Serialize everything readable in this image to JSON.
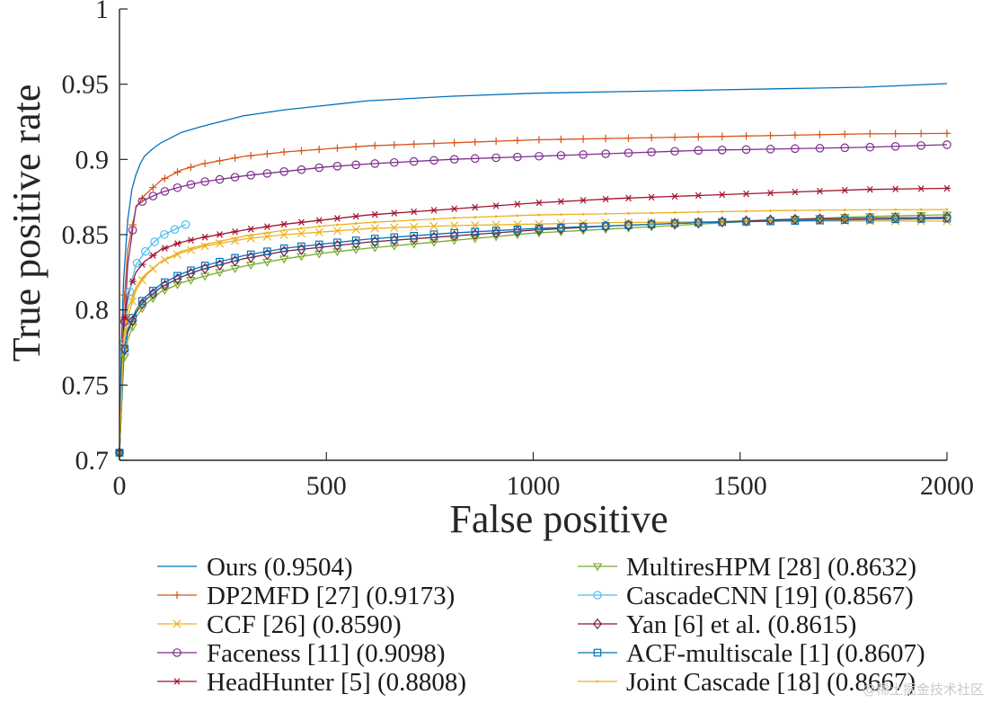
{
  "chart_data": {
    "type": "line",
    "title": "",
    "xlabel": "False positive",
    "ylabel": "True positive rate",
    "xlim": [
      0,
      2000
    ],
    "ylim": [
      0.7,
      1
    ],
    "xticks": [
      0,
      500,
      1000,
      1500,
      2000
    ],
    "xtick_labels": [
      "0",
      "500",
      "1000",
      "1500",
      "2000"
    ],
    "yticks": [
      0.7,
      0.75,
      0.8,
      0.85,
      0.9,
      0.95,
      1
    ],
    "ytick_labels": [
      "0.7",
      "0.75",
      "0.8",
      "0.85",
      "0.9",
      "0.95",
      "1"
    ],
    "grid": false,
    "legend_position": "bottom, two columns",
    "series": [
      {
        "name": "Ours (0.9504)",
        "color": "#0072BD",
        "marker": "none",
        "x": [
          0,
          5,
          10,
          20,
          30,
          40,
          50,
          60,
          80,
          100,
          150,
          200,
          300,
          400,
          500,
          600,
          800,
          1000,
          1200,
          1400,
          1600,
          1800,
          2000
        ],
        "y": [
          0.705,
          0.78,
          0.82,
          0.86,
          0.88,
          0.89,
          0.897,
          0.902,
          0.907,
          0.911,
          0.918,
          0.922,
          0.929,
          0.933,
          0.936,
          0.939,
          0.942,
          0.944,
          0.945,
          0.946,
          0.947,
          0.948,
          0.9504
        ]
      },
      {
        "name": "DP2MFD [27] (0.9173)",
        "color": "#D95319",
        "marker": "plus",
        "x": [
          0,
          10,
          20,
          40,
          60,
          100,
          150,
          200,
          300,
          400,
          500,
          600,
          800,
          1000,
          1200,
          1400,
          1600,
          1800,
          2000
        ],
        "y": [
          0.705,
          0.8,
          0.84,
          0.868,
          0.876,
          0.886,
          0.893,
          0.897,
          0.902,
          0.905,
          0.907,
          0.909,
          0.911,
          0.913,
          0.914,
          0.915,
          0.916,
          0.917,
          0.9173
        ]
      },
      {
        "name": "CCF [26] (0.8590)",
        "color": "#EDB120",
        "marker": "cross",
        "x": [
          0,
          10,
          20,
          40,
          60,
          100,
          150,
          200,
          300,
          400,
          500,
          600,
          800,
          1000,
          1200,
          1400,
          1600,
          1800,
          2000
        ],
        "y": [
          0.705,
          0.77,
          0.795,
          0.813,
          0.822,
          0.832,
          0.838,
          0.842,
          0.847,
          0.85,
          0.852,
          0.854,
          0.856,
          0.857,
          0.858,
          0.8585,
          0.859,
          0.859,
          0.859
        ]
      },
      {
        "name": "Faceness [11] (0.9098)",
        "color": "#7E2F8E",
        "marker": "circle",
        "x": [
          0,
          10,
          20,
          40,
          60,
          100,
          150,
          200,
          300,
          400,
          500,
          600,
          800,
          1000,
          1200,
          1400,
          1600,
          1800,
          2000
        ],
        "y": [
          0.705,
          0.78,
          0.83,
          0.869,
          0.873,
          0.878,
          0.882,
          0.885,
          0.889,
          0.892,
          0.895,
          0.897,
          0.9,
          0.902,
          0.904,
          0.906,
          0.907,
          0.908,
          0.9098
        ]
      },
      {
        "name": "HeadHunter [5] (0.8808)",
        "color": "#A2142F",
        "marker": "asterisk",
        "x": [
          0,
          10,
          20,
          40,
          60,
          100,
          150,
          200,
          300,
          400,
          500,
          600,
          800,
          1000,
          1200,
          1400,
          1600,
          1800,
          2000
        ],
        "y": [
          0.705,
          0.79,
          0.81,
          0.825,
          0.832,
          0.84,
          0.845,
          0.848,
          0.853,
          0.857,
          0.86,
          0.863,
          0.867,
          0.871,
          0.874,
          0.876,
          0.878,
          0.88,
          0.8808
        ]
      },
      {
        "name": "MultiresHPM [28] (0.8632)",
        "color": "#77AC30",
        "marker": "triangle-down",
        "x": [
          0,
          10,
          20,
          40,
          60,
          100,
          150,
          200,
          300,
          400,
          500,
          600,
          800,
          1000,
          1200,
          1400,
          1600,
          1800,
          2000
        ],
        "y": [
          0.705,
          0.765,
          0.78,
          0.795,
          0.803,
          0.812,
          0.818,
          0.822,
          0.829,
          0.834,
          0.838,
          0.841,
          0.846,
          0.851,
          0.854,
          0.857,
          0.86,
          0.862,
          0.8632
        ]
      },
      {
        "name": "CascadeCNN [19] (0.8567)",
        "color": "#4DBEEE",
        "marker": "circle",
        "x": [
          0,
          5,
          10,
          20,
          30,
          40,
          60,
          80,
          100,
          130,
          160
        ],
        "y": [
          0.705,
          0.75,
          0.78,
          0.805,
          0.82,
          0.83,
          0.838,
          0.844,
          0.849,
          0.853,
          0.8567
        ]
      },
      {
        "name": "Yan [6] et al. (0.8615)",
        "color": "#7A1E3A",
        "marker": "diamond",
        "x": [
          0,
          10,
          20,
          40,
          60,
          100,
          150,
          200,
          300,
          400,
          500,
          600,
          800,
          1000,
          1200,
          1400,
          1600,
          1800,
          2000
        ],
        "y": [
          0.705,
          0.77,
          0.785,
          0.798,
          0.806,
          0.815,
          0.822,
          0.827,
          0.834,
          0.839,
          0.842,
          0.845,
          0.849,
          0.853,
          0.856,
          0.858,
          0.86,
          0.861,
          0.8615
        ]
      },
      {
        "name": "ACF-multiscale [1] (0.8607)",
        "color": "#0072BD",
        "marker": "square",
        "x": [
          0,
          10,
          20,
          40,
          60,
          100,
          150,
          200,
          300,
          400,
          500,
          600,
          800,
          1000,
          1200,
          1400,
          1600,
          1800,
          2000
        ],
        "y": [
          0.705,
          0.77,
          0.787,
          0.8,
          0.808,
          0.817,
          0.824,
          0.829,
          0.836,
          0.841,
          0.844,
          0.847,
          0.851,
          0.854,
          0.856,
          0.858,
          0.859,
          0.86,
          0.8607
        ]
      },
      {
        "name": "Joint Cascade [18] (0.8667)",
        "color": "#EDB120",
        "marker": "point",
        "x": [
          0,
          10,
          20,
          40,
          60,
          100,
          150,
          200,
          300,
          400,
          500,
          600,
          800,
          1000,
          1200,
          1400,
          1600,
          1800,
          2000
        ],
        "y": [
          0.705,
          0.78,
          0.8,
          0.815,
          0.823,
          0.832,
          0.839,
          0.843,
          0.849,
          0.853,
          0.856,
          0.858,
          0.861,
          0.863,
          0.864,
          0.865,
          0.866,
          0.8665,
          0.8667
        ]
      }
    ]
  },
  "watermark": "@稀土掘金技术社区"
}
